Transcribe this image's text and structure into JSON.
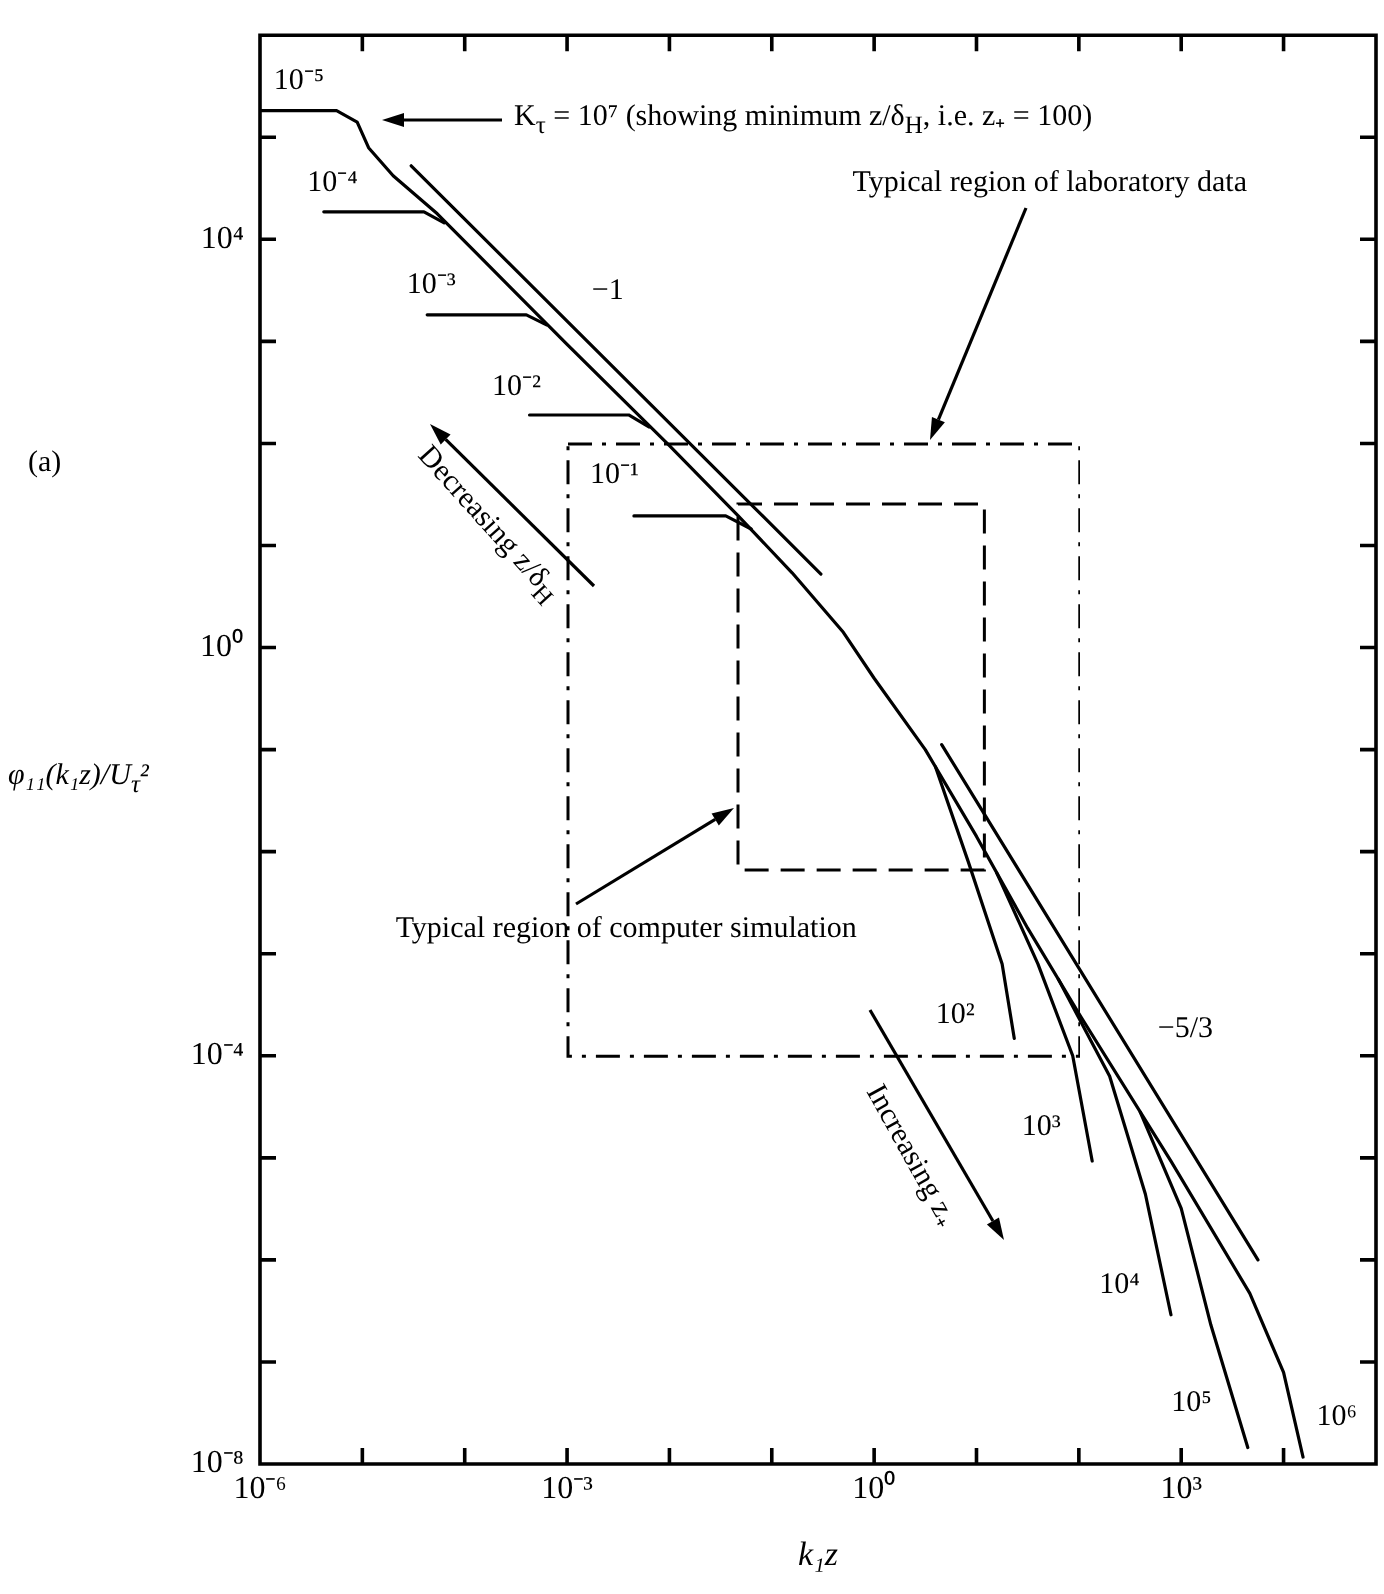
{
  "chart_data": {
    "type": "line",
    "log": "xy",
    "marker": "none",
    "xlabel": "k₁z",
    "ylabel": "φ₁₁(k₁z)/U$_{τ}$²",
    "xlim": [
      1e-06,
      80000
    ],
    "ylim": [
      1e-08,
      1000000
    ],
    "xticks": [
      {
        "value": 1e-06,
        "label": "10⁻⁶"
      },
      {
        "value": 1e-05,
        "label": null
      },
      {
        "value": 0.0001,
        "label": null
      },
      {
        "value": 0.001,
        "label": "10⁻³"
      },
      {
        "value": 0.01,
        "label": null
      },
      {
        "value": 0.1,
        "label": null
      },
      {
        "value": 1,
        "label": "10⁰"
      },
      {
        "value": 10,
        "label": null
      },
      {
        "value": 100,
        "label": null
      },
      {
        "value": 1000,
        "label": "10³"
      },
      {
        "value": 10000,
        "label": null
      }
    ],
    "yticks": [
      {
        "value": 1e-08,
        "label": "10⁻⁸"
      },
      {
        "value": 1e-07,
        "label": null
      },
      {
        "value": 1e-06,
        "label": null
      },
      {
        "value": 1e-05,
        "label": null
      },
      {
        "value": 0.0001,
        "label": "10⁻⁴"
      },
      {
        "value": 0.001,
        "label": null
      },
      {
        "value": 0.01,
        "label": null
      },
      {
        "value": 0.1,
        "label": null
      },
      {
        "value": 1,
        "label": "10⁰"
      },
      {
        "value": 10,
        "label": null
      },
      {
        "value": 100,
        "label": null
      },
      {
        "value": 1000,
        "label": null
      },
      {
        "value": 10000,
        "label": "10⁴"
      },
      {
        "value": 100000,
        "label": null
      },
      {
        "value": 1000000,
        "label": null
      }
    ],
    "series": [
      {
        "color": "#000000",
        "line_style": "solid",
        "x": [
          1e-06,
          5.6e-06,
          8.9e-06,
          1.15e-05,
          2e-05,
          5.4e-05,
          0.001,
          0.01,
          0.047,
          0.158,
          0.5,
          1,
          3.16,
          10,
          31.6,
          105,
          794,
          4680,
          10000,
          15500
        ],
        "values": [
          182000,
          182000,
          141000,
          79000,
          42000,
          17800,
          933,
          95,
          19.5,
          5.4,
          1.41,
          0.5,
          0.1,
          0.0141,
          0.00178,
          0.00024,
          9.3e-06,
          4.7e-07,
          7.9e-08,
          1.17e-08
        ]
      },
      {
        "color": "#000000",
        "line_style": "solid",
        "x": [
          4.2e-06,
          4e-05,
          6.3e-05
        ],
        "values": [
          18600,
          18600,
          14500
        ]
      },
      {
        "color": "#000000",
        "line_style": "solid",
        "x": [
          4.3e-05,
          0.0004,
          0.00063
        ],
        "values": [
          1820,
          1820,
          1450
        ]
      },
      {
        "color": "#000000",
        "line_style": "solid",
        "x": [
          0.00043,
          0.004,
          0.0063
        ],
        "values": [
          190,
          190,
          145
        ]
      },
      {
        "color": "#000000",
        "line_style": "solid",
        "x": [
          0.0045,
          0.0355,
          0.063
        ],
        "values": [
          19.5,
          19.5,
          14.5
        ]
      },
      {
        "color": "#000000",
        "line_style": "solid",
        "x": [
          3.98,
          8.32,
          17.8,
          23.4
        ],
        "values": [
          0.0676,
          0.00794,
          0.000794,
          0.000148
        ]
      },
      {
        "color": "#000000",
        "line_style": "solid",
        "x": [
          15.8,
          39.8,
          87.1,
          135
        ],
        "values": [
          0.00617,
          0.000794,
          0.0001,
          9.3e-06
        ]
      },
      {
        "color": "#000000",
        "line_style": "solid",
        "x": [
          63.1,
          200,
          447,
          794
        ],
        "values": [
          0.000562,
          6.3e-05,
          4.4e-06,
          2.9e-07
        ]
      },
      {
        "color": "#000000",
        "line_style": "solid",
        "x": [
          398,
          1000,
          1950,
          4470
        ],
        "values": [
          2.8e-05,
          3.2e-06,
          2.3e-07,
          1.45e-08
        ]
      },
      {
        "color": "#000000",
        "line_style": "solid",
        "x": [
          3e-05,
          0.302
        ],
        "values": [
          52500,
          5.25
        ]
      },
      {
        "color": "#000000",
        "line_style": "solid",
        "x": [
          4.57,
          5620
        ],
        "values": [
          0.112,
          1e-06
        ]
      }
    ],
    "annotations": [
      "(a)",
      "K$_{τ}$ = 10⁷ (showing minimum z/δ$_{H}$, i.e. z₊ = 100)",
      "Typical region of laboratory data",
      "Typical region of computer simulation",
      "−1",
      "−5/3",
      "Decreasing z/δ$_{H}$",
      "Increasing z₊",
      "10⁻⁵",
      "10⁻⁴",
      "10⁻³",
      "10⁻²",
      "10⁻¹",
      "10²",
      "10³",
      "10⁴",
      "10⁵",
      "10⁶"
    ]
  }
}
